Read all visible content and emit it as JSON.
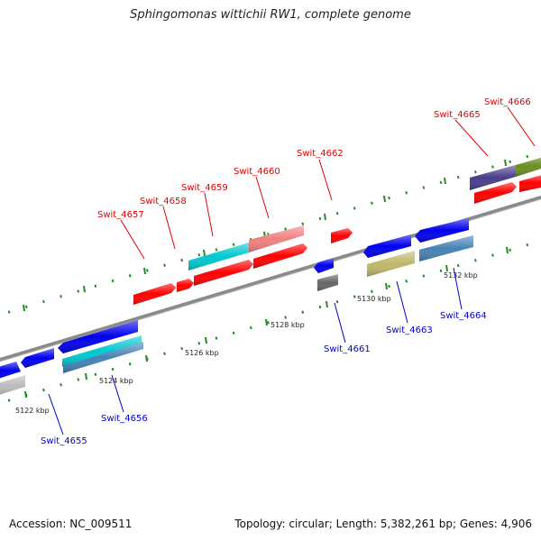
{
  "title": "Sphingomonas wittichii RW1, complete genome",
  "accession": "Accession: NC_009511",
  "summary": "Topology: circular; Length: 5,382,261 bp; Genes: 4,906",
  "scale_labels": [
    "5122 kbp",
    "5124 kbp",
    "5126 kbp",
    "5128 kbp",
    "5130 kbp",
    "5132 kbp"
  ],
  "genes": [
    {
      "name": "Swit_4655",
      "strand": "reverse"
    },
    {
      "name": "Swit_4656",
      "strand": "reverse"
    },
    {
      "name": "Swit_4657",
      "strand": "forward"
    },
    {
      "name": "Swit_4658",
      "strand": "forward"
    },
    {
      "name": "Swit_4659",
      "strand": "forward"
    },
    {
      "name": "Swit_4660",
      "strand": "forward"
    },
    {
      "name": "Swit_4661",
      "strand": "reverse"
    },
    {
      "name": "Swit_4662",
      "strand": "forward"
    },
    {
      "name": "Swit_4663",
      "strand": "reverse"
    },
    {
      "name": "Swit_4664",
      "strand": "reverse"
    },
    {
      "name": "Swit_4665",
      "strand": "forward"
    },
    {
      "name": "Swit_4666",
      "strand": "forward"
    }
  ],
  "colors": {
    "forward_label": "#e00000",
    "reverse_label": "#0000cc",
    "backbone": "#888888",
    "tick_green": "#228b22",
    "gene_red": "#ff0000",
    "gene_blue": "#0000ee",
    "gene_cyan": "#00c8d0",
    "gene_pink": "#f08080",
    "gene_steel": "#4682b4",
    "gene_olive": "#bdb76b",
    "gene_gray": "#666666",
    "gene_silver": "#bbbbbb",
    "gene_purple": "#483d8b",
    "gene_green": "#6b8e23"
  }
}
